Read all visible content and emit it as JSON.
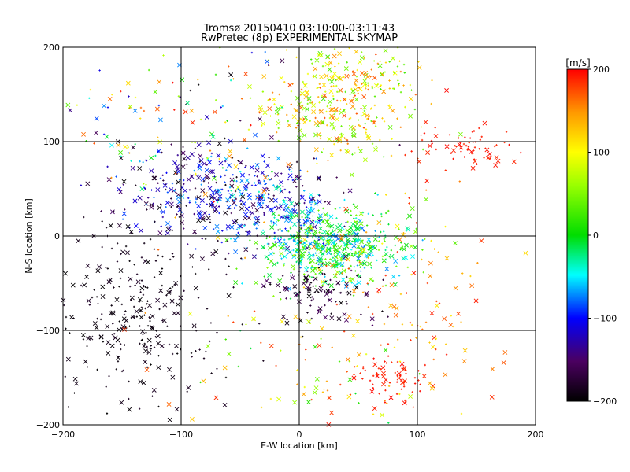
{
  "chart_data": {
    "type": "scatter",
    "title": "Tromsø 20150410 03:10:00-03:11:43",
    "subtitle": "RwPretec (8p) EXPERIMENTAL SKYMAP",
    "xlabel": "E-W location [km]",
    "ylabel": "N-S location [km]",
    "xlim": [
      -200,
      200
    ],
    "ylim": [
      -200,
      200
    ],
    "x_ticks": [
      -200,
      -100,
      0,
      100,
      200
    ],
    "y_ticks": [
      -200,
      -100,
      0,
      100,
      200
    ],
    "grid": true,
    "markers": [
      "x",
      "+"
    ],
    "colorbar": {
      "label": "[m/s]",
      "min": -200,
      "max": 200,
      "ticks": [
        200,
        100,
        0,
        -100,
        -200
      ],
      "colormap": "black-purple-blue-cyan-green-yellow-orange-red"
    },
    "clusters": [
      {
        "x": 35,
        "y": 145,
        "sx": 35,
        "sy": 30,
        "n": 380,
        "vmin": 20,
        "vmax": 180
      },
      {
        "x": 145,
        "y": 95,
        "sx": 20,
        "sy": 10,
        "n": 70,
        "vmin": 185,
        "vmax": 200
      },
      {
        "x": 25,
        "y": -10,
        "sx": 30,
        "sy": 20,
        "n": 600,
        "vmin": -80,
        "vmax": 60
      },
      {
        "x": -80,
        "y": 40,
        "sx": 40,
        "sy": 25,
        "n": 350,
        "vmin": -200,
        "vmax": -60
      },
      {
        "x": -20,
        "y": 30,
        "sx": 25,
        "sy": 20,
        "n": 150,
        "vmin": -150,
        "vmax": -20
      },
      {
        "x": -140,
        "y": -80,
        "sx": 40,
        "sy": 50,
        "n": 300,
        "vmin": -200,
        "vmax": -180
      },
      {
        "x": 20,
        "y": -60,
        "sx": 25,
        "sy": 15,
        "n": 120,
        "vmin": -200,
        "vmax": -150
      },
      {
        "x": 80,
        "y": -150,
        "sx": 15,
        "sy": 15,
        "n": 70,
        "vmin": 185,
        "vmax": 200
      },
      {
        "x": -100,
        "y": 120,
        "sx": 60,
        "sy": 50,
        "n": 180,
        "vmin": -200,
        "vmax": 200
      },
      {
        "x": 80,
        "y": -60,
        "sx": 50,
        "sy": 60,
        "n": 140,
        "vmin": 100,
        "vmax": 200
      },
      {
        "x": 0,
        "y": -140,
        "sx": 60,
        "sy": 40,
        "n": 80,
        "vmin": -20,
        "vmax": 200
      }
    ]
  }
}
